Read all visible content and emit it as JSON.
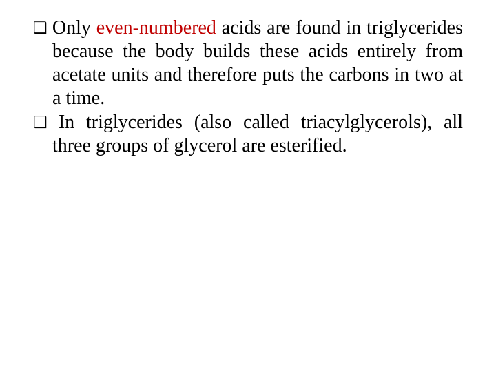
{
  "slide": {
    "background_color": "#ffffff",
    "text_color": "#000000",
    "highlight_color": "#c00000",
    "font_family": "Times New Roman",
    "font_size_pt": 21,
    "bullet_glyph": "❑",
    "items": [
      {
        "pre": " Only ",
        "highlight": "even-numbered",
        "post": " acids are found in triglycerides because the body builds these acids entirely from acetate units and therefore puts the carbons in two at a time."
      },
      {
        "pre": " In triglycerides (also called triacylglycerols), all three groups of glycerol are esterified.",
        "highlight": "",
        "post": ""
      }
    ]
  }
}
